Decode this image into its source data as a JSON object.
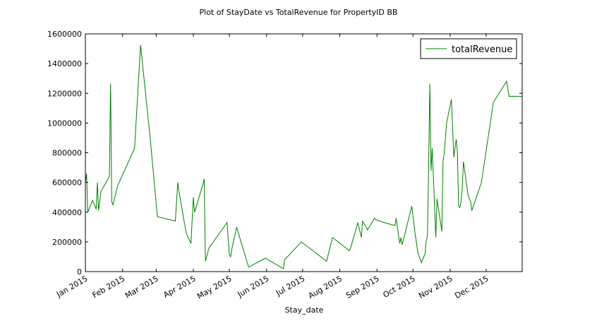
{
  "chart_data": {
    "type": "line",
    "title": "Plot of StayDate vs TotalRevenue for PropertyID BB",
    "xlabel": "Stay_date",
    "ylabel": "",
    "xlim": [
      "2015-01-01",
      "2015-12-31"
    ],
    "ylim": [
      0,
      1600000
    ],
    "x_ticks": [
      "2015-01-01",
      "2015-02-01",
      "2015-03-01",
      "2015-04-01",
      "2015-05-01",
      "2015-06-01",
      "2015-07-01",
      "2015-08-01",
      "2015-09-01",
      "2015-10-01",
      "2015-11-01",
      "2015-12-01"
    ],
    "x_tick_labels": [
      "Jan 2015",
      "Feb 2015",
      "Mar 2015",
      "Apr 2015",
      "May 2015",
      "Jun 2015",
      "Jul 2015",
      "Aug 2015",
      "Sep 2015",
      "Oct 2015",
      "Nov 2015",
      "Dec 2015"
    ],
    "y_ticks": [
      0,
      200000,
      400000,
      600000,
      800000,
      1000000,
      1200000,
      1400000,
      1600000
    ],
    "y_tick_labels": [
      "0",
      "200000",
      "400000",
      "600000",
      "800000",
      "1000000",
      "1200000",
      "1400000",
      "1600000"
    ],
    "grid": false,
    "legend_position": "top-right",
    "series": [
      {
        "name": "totalRevenue",
        "color": "#008000",
        "x": [
          "2015-01-01",
          "2015-01-02",
          "2015-01-03",
          "2015-01-07",
          "2015-01-10",
          "2015-01-11",
          "2015-01-12",
          "2015-01-14",
          "2015-01-21",
          "2015-01-22",
          "2015-01-23",
          "2015-01-24",
          "2015-01-28",
          "2015-02-11",
          "2015-02-16",
          "2015-02-24",
          "2015-03-02",
          "2015-03-17",
          "2015-03-19",
          "2015-03-20",
          "2015-03-26",
          "2015-03-30",
          "2015-04-01",
          "2015-04-02",
          "2015-04-09",
          "2015-04-10",
          "2015-04-11",
          "2015-04-14",
          "2015-04-29",
          "2015-05-01",
          "2015-05-02",
          "2015-05-03",
          "2015-05-07",
          "2015-05-17",
          "2015-05-31",
          "2015-06-15",
          "2015-06-16",
          "2015-06-30",
          "2015-07-21",
          "2015-07-25",
          "2015-07-26",
          "2015-08-09",
          "2015-08-10",
          "2015-08-14",
          "2015-08-16",
          "2015-08-19",
          "2015-08-20",
          "2015-08-23",
          "2015-08-24",
          "2015-08-30",
          "2015-08-31",
          "2015-09-07",
          "2015-09-16",
          "2015-09-17",
          "2015-09-18",
          "2015-09-20",
          "2015-09-21",
          "2015-09-22",
          "2015-09-30",
          "2015-10-03",
          "2015-10-05",
          "2015-10-08",
          "2015-10-11",
          "2015-10-12",
          "2015-10-13",
          "2015-10-14",
          "2015-10-15",
          "2015-10-16",
          "2015-10-17",
          "2015-10-20",
          "2015-10-21",
          "2015-10-25",
          "2015-10-26",
          "2015-10-27",
          "2015-10-29",
          "2015-11-02",
          "2015-11-04",
          "2015-11-06",
          "2015-11-07",
          "2015-11-08",
          "2015-11-09",
          "2015-11-10",
          "2015-11-11",
          "2015-11-12",
          "2015-11-16",
          "2015-11-18",
          "2015-11-19",
          "2015-11-27",
          "2015-12-07",
          "2015-12-18",
          "2015-12-20",
          "2015-12-26",
          "2015-12-30",
          "2015-12-31"
        ],
        "values": [
          600000,
          660000,
          400000,
          480000,
          420000,
          600000,
          410000,
          540000,
          640000,
          1265000,
          470000,
          450000,
          580000,
          830000,
          1525000,
          900000,
          370000,
          340000,
          600000,
          540000,
          260000,
          190000,
          500000,
          400000,
          590000,
          625000,
          70000,
          160000,
          330000,
          110000,
          100000,
          150000,
          300000,
          30000,
          90000,
          20000,
          80000,
          200000,
          70000,
          200000,
          230000,
          140000,
          160000,
          270000,
          330000,
          230000,
          340000,
          300000,
          280000,
          360000,
          350000,
          330000,
          310000,
          360000,
          300000,
          190000,
          230000,
          180000,
          440000,
          240000,
          130000,
          60000,
          120000,
          210000,
          240000,
          700000,
          1265000,
          680000,
          830000,
          230000,
          490000,
          270000,
          740000,
          800000,
          1000000,
          1160000,
          770000,
          890000,
          800000,
          440000,
          430000,
          470000,
          560000,
          740000,
          510000,
          470000,
          410000,
          600000,
          1140000,
          1280000,
          1180000,
          1180000,
          1180000,
          1180000
        ]
      }
    ]
  }
}
